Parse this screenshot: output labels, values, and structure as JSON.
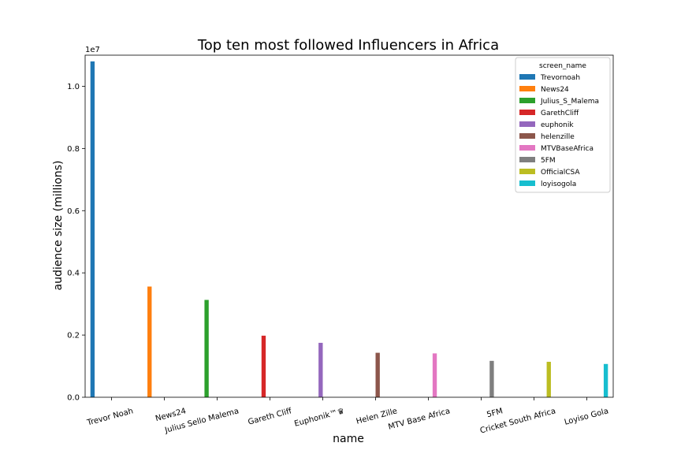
{
  "chart_data": {
    "type": "bar",
    "title": "Top ten most followed Influencers in Africa",
    "xlabel": "name",
    "ylabel": "audience size (millions)",
    "y_offset_text": "1e7",
    "ylim": [
      0,
      11000000.0
    ],
    "yticks": [
      0,
      2000000,
      4000000,
      6000000,
      8000000,
      10000000
    ],
    "ytick_labels": [
      "0.0",
      "0.2",
      "0.4",
      "0.6",
      "0.8",
      "1.0"
    ],
    "grid": false,
    "legend_title": "screen_name",
    "legend_position": "top-right",
    "categories": [
      "Trevor Noah",
      "News24",
      "Julius Sello Malema",
      "Gareth Cliff",
      "Euphonik™♛",
      "Helen Zille",
      "MTV Base Africa",
      "5FM",
      "Cricket South Africa",
      "Loyiso Gola"
    ],
    "series": [
      {
        "name": "Trevornoah",
        "color": "#1f77b4",
        "category_index": 0,
        "value": 10800000
      },
      {
        "name": "News24",
        "color": "#ff7f0e",
        "category_index": 1,
        "value": 3560000
      },
      {
        "name": "Julius_S_Malema",
        "color": "#2ca02c",
        "category_index": 2,
        "value": 3130000
      },
      {
        "name": "GarethCliff",
        "color": "#d62728",
        "category_index": 3,
        "value": 1980000
      },
      {
        "name": "euphonik",
        "color": "#9467bd",
        "category_index": 4,
        "value": 1750000
      },
      {
        "name": "helenzille",
        "color": "#8c564b",
        "category_index": 5,
        "value": 1430000
      },
      {
        "name": "MTVBaseAfrica",
        "color": "#e377c2",
        "category_index": 6,
        "value": 1410000
      },
      {
        "name": "5FM",
        "color": "#7f7f7f",
        "category_index": 7,
        "value": 1170000
      },
      {
        "name": "OfficialCSA",
        "color": "#bcbd22",
        "category_index": 8,
        "value": 1140000
      },
      {
        "name": "loyisogola",
        "color": "#17becf",
        "category_index": 9,
        "value": 1070000
      }
    ]
  }
}
